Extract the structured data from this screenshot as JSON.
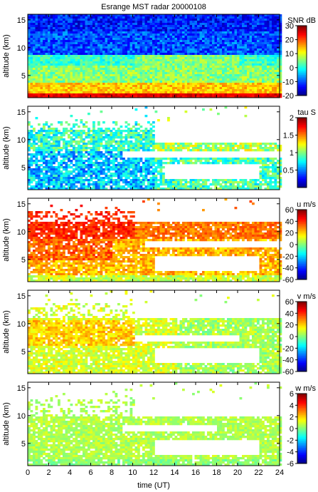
{
  "title": "Esrange MST radar 20000108",
  "xlabel": "time (UT)",
  "chart_data": [
    {
      "type": "heatmap",
      "title": "Esrange MST radar 20000108",
      "ylabel": "altitude (km)",
      "colorbar_label": "SNR dB",
      "x_ticks": [
        0,
        2,
        4,
        6,
        8,
        10,
        12,
        14,
        16,
        18,
        20,
        22,
        24
      ],
      "xlim": [
        0,
        24
      ],
      "y_ticks": [
        5,
        10,
        15
      ],
      "ylim": [
        1,
        16
      ],
      "cbar_ticks": [
        -20,
        -10,
        0,
        10,
        20,
        30
      ],
      "cbar_range": [
        -20,
        30
      ]
    },
    {
      "type": "heatmap",
      "ylabel": "altitude (km)",
      "colorbar_label": "tau S",
      "x_ticks": [
        0,
        2,
        4,
        6,
        8,
        10,
        12,
        14,
        16,
        18,
        20,
        22,
        24
      ],
      "xlim": [
        0,
        24
      ],
      "y_ticks": [
        5,
        10,
        15
      ],
      "ylim": [
        1,
        16
      ],
      "cbar_ticks": [
        0.5,
        1,
        1.5,
        2
      ],
      "cbar_range": [
        0,
        2
      ]
    },
    {
      "type": "heatmap",
      "ylabel": "altitude (km)",
      "colorbar_label": "u m/s",
      "x_ticks": [
        0,
        2,
        4,
        6,
        8,
        10,
        12,
        14,
        16,
        18,
        20,
        22,
        24
      ],
      "xlim": [
        0,
        24
      ],
      "y_ticks": [
        5,
        10,
        15
      ],
      "ylim": [
        1,
        16
      ],
      "cbar_ticks": [
        -60,
        -40,
        -20,
        0,
        20,
        40,
        60
      ],
      "cbar_range": [
        -60,
        60
      ]
    },
    {
      "type": "heatmap",
      "ylabel": "altitude (km)",
      "colorbar_label": "v m/s",
      "x_ticks": [
        0,
        2,
        4,
        6,
        8,
        10,
        12,
        14,
        16,
        18,
        20,
        22,
        24
      ],
      "xlim": [
        0,
        24
      ],
      "y_ticks": [
        5,
        10,
        15
      ],
      "ylim": [
        1,
        16
      ],
      "cbar_ticks": [
        -60,
        -40,
        -20,
        0,
        20,
        40,
        60
      ],
      "cbar_range": [
        -60,
        60
      ]
    },
    {
      "type": "heatmap",
      "ylabel": "altitude (km)",
      "colorbar_label": "w m/s",
      "x_ticks": [
        0,
        2,
        4,
        6,
        8,
        10,
        12,
        14,
        16,
        18,
        20,
        22,
        24
      ],
      "xlim": [
        0,
        24
      ],
      "y_ticks": [
        5,
        10,
        15
      ],
      "ylim": [
        1,
        16
      ],
      "cbar_ticks": [
        -6,
        -4,
        -2,
        0,
        2,
        4,
        6
      ],
      "cbar_range": [
        -6,
        6
      ]
    }
  ]
}
